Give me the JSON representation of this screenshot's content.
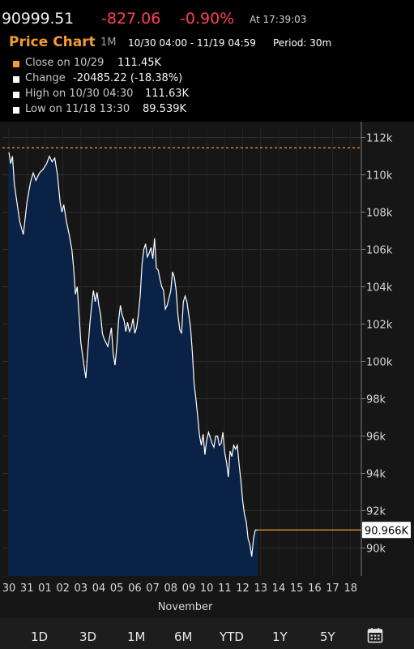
{
  "quote": {
    "price": "90999.51",
    "change": "-827.06",
    "change_pct": "-0.90%",
    "time": "At 17:39:03"
  },
  "header": {
    "title": "Price Chart",
    "range": "1M",
    "dates": "10/30 04:00 - 11/19 04:59",
    "period": "Period: 30m"
  },
  "legend": [
    {
      "label": "Close on 10/29",
      "value": "111.45K",
      "color": "#f39c34"
    },
    {
      "label": "Change",
      "value": "-20485.22 (-18.38%)",
      "color": "#ffffff"
    },
    {
      "label": "High on 10/30 04:30",
      "value": "111.63K",
      "color": "#ffffff"
    },
    {
      "label": "Low on 11/18 13:30",
      "value": "89.539K",
      "color": "#ffffff"
    }
  ],
  "chart_data": {
    "type": "area",
    "x_ticks": [
      "30",
      "31",
      "01",
      "02",
      "03",
      "04",
      "05",
      "06",
      "07",
      "08",
      "09",
      "10",
      "11",
      "12",
      "13",
      "14",
      "15",
      "16",
      "17",
      "18"
    ],
    "x_axis_label": "November",
    "y_ticks": [
      "112k",
      "110k",
      "108k",
      "106k",
      "104k",
      "102k",
      "100k",
      "98k",
      "96k",
      "94k",
      "92k",
      "90k"
    ],
    "ylim": [
      88500,
      112500
    ],
    "reference_close": 111450,
    "last_label": "90.966K",
    "last_value": 90966,
    "grid": true,
    "line_color": "#ffffff",
    "area_color": "#0a2246",
    "ref_color": "#f39c34",
    "points": [
      [
        0,
        111200
      ],
      [
        0.1,
        110600
      ],
      [
        0.2,
        111000
      ],
      [
        0.3,
        109500
      ],
      [
        0.45,
        108500
      ],
      [
        0.6,
        107500
      ],
      [
        0.8,
        106800
      ],
      [
        1.0,
        108500
      ],
      [
        1.2,
        109600
      ],
      [
        1.35,
        110100
      ],
      [
        1.5,
        109700
      ],
      [
        1.7,
        110100
      ],
      [
        1.9,
        110300
      ],
      [
        2.1,
        110600
      ],
      [
        2.25,
        111000
      ],
      [
        2.4,
        110700
      ],
      [
        2.55,
        110900
      ],
      [
        2.7,
        110000
      ],
      [
        2.85,
        108500
      ],
      [
        2.95,
        108000
      ],
      [
        3.05,
        108400
      ],
      [
        3.2,
        107500
      ],
      [
        3.35,
        106800
      ],
      [
        3.5,
        106000
      ],
      [
        3.6,
        105000
      ],
      [
        3.7,
        103600
      ],
      [
        3.8,
        104000
      ],
      [
        3.9,
        102500
      ],
      [
        4.0,
        101000
      ],
      [
        4.1,
        100300
      ],
      [
        4.2,
        99600
      ],
      [
        4.28,
        99100
      ],
      [
        4.38,
        100500
      ],
      [
        4.5,
        102000
      ],
      [
        4.6,
        103000
      ],
      [
        4.7,
        103800
      ],
      [
        4.8,
        103200
      ],
      [
        4.9,
        103700
      ],
      [
        5.0,
        103000
      ],
      [
        5.1,
        102500
      ],
      [
        5.2,
        101500
      ],
      [
        5.3,
        101200
      ],
      [
        5.4,
        101000
      ],
      [
        5.5,
        100800
      ],
      [
        5.6,
        101300
      ],
      [
        5.7,
        101800
      ],
      [
        5.8,
        100400
      ],
      [
        5.9,
        99800
      ],
      [
        6.0,
        100800
      ],
      [
        6.1,
        102200
      ],
      [
        6.2,
        103000
      ],
      [
        6.3,
        102500
      ],
      [
        6.4,
        102200
      ],
      [
        6.5,
        101600
      ],
      [
        6.6,
        102100
      ],
      [
        6.7,
        101600
      ],
      [
        6.8,
        101800
      ],
      [
        6.9,
        102300
      ],
      [
        7.0,
        101500
      ],
      [
        7.1,
        101800
      ],
      [
        7.2,
        102500
      ],
      [
        7.3,
        103500
      ],
      [
        7.4,
        105200
      ],
      [
        7.5,
        106000
      ],
      [
        7.6,
        106300
      ],
      [
        7.7,
        105600
      ],
      [
        7.8,
        105800
      ],
      [
        7.9,
        106100
      ],
      [
        8.0,
        105500
      ],
      [
        8.1,
        106600
      ],
      [
        8.2,
        105000
      ],
      [
        8.3,
        104900
      ],
      [
        8.4,
        104400
      ],
      [
        8.5,
        104000
      ],
      [
        8.6,
        103800
      ],
      [
        8.7,
        102800
      ],
      [
        8.8,
        103000
      ],
      [
        8.9,
        103400
      ],
      [
        9.0,
        103800
      ],
      [
        9.1,
        104800
      ],
      [
        9.2,
        104500
      ],
      [
        9.3,
        103800
      ],
      [
        9.4,
        102500
      ],
      [
        9.5,
        101700
      ],
      [
        9.6,
        101500
      ],
      [
        9.7,
        103200
      ],
      [
        9.8,
        103500
      ],
      [
        9.9,
        103200
      ],
      [
        10.0,
        102500
      ],
      [
        10.1,
        101800
      ],
      [
        10.2,
        100500
      ],
      [
        10.3,
        98800
      ],
      [
        10.4,
        98000
      ],
      [
        10.5,
        97000
      ],
      [
        10.6,
        96000
      ],
      [
        10.7,
        95500
      ],
      [
        10.8,
        96100
      ],
      [
        10.9,
        95000
      ],
      [
        11.0,
        95800
      ],
      [
        11.1,
        96200
      ],
      [
        11.2,
        95900
      ],
      [
        11.3,
        95600
      ],
      [
        11.4,
        95400
      ],
      [
        11.5,
        96000
      ],
      [
        11.6,
        96000
      ],
      [
        11.7,
        95500
      ],
      [
        11.8,
        95600
      ],
      [
        11.9,
        96200
      ],
      [
        12.0,
        95100
      ],
      [
        12.1,
        94600
      ],
      [
        12.2,
        93800
      ],
      [
        12.3,
        95200
      ],
      [
        12.4,
        94900
      ],
      [
        12.5,
        95500
      ],
      [
        12.6,
        95300
      ],
      [
        12.7,
        95500
      ],
      [
        12.8,
        94500
      ],
      [
        12.9,
        93600
      ],
      [
        13.0,
        92500
      ],
      [
        13.1,
        91800
      ],
      [
        13.2,
        91400
      ],
      [
        13.3,
        90500
      ],
      [
        13.4,
        90200
      ],
      [
        13.5,
        89539
      ],
      [
        13.6,
        90500
      ],
      [
        13.7,
        90966
      ],
      [
        13.85,
        90966
      ]
    ]
  },
  "range_tabs": [
    "1D",
    "3D",
    "1M",
    "6M",
    "YTD",
    "1Y",
    "5Y"
  ],
  "icons": {
    "calendar": "calendar-icon"
  }
}
